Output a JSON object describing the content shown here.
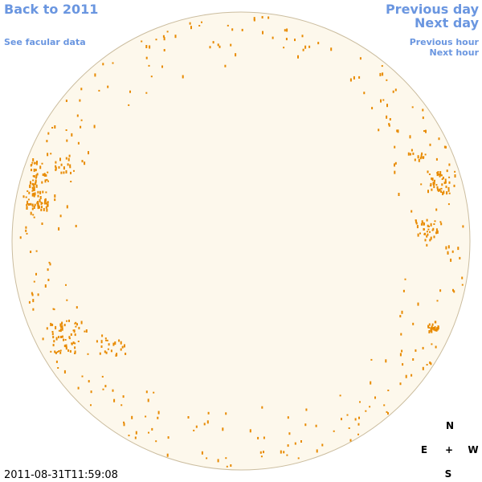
{
  "links": {
    "back": "Back to 2011",
    "facular_data": "See facular data",
    "previous_day": "Previous day",
    "next_day": "Next day",
    "previous_hour": "Previous hour",
    "next_hour": "Next hour"
  },
  "timestamp": "2011-08-31T11:59:08",
  "compass": {
    "north": "N",
    "east": "E",
    "center": "+",
    "west": "W",
    "south": "S"
  }
}
